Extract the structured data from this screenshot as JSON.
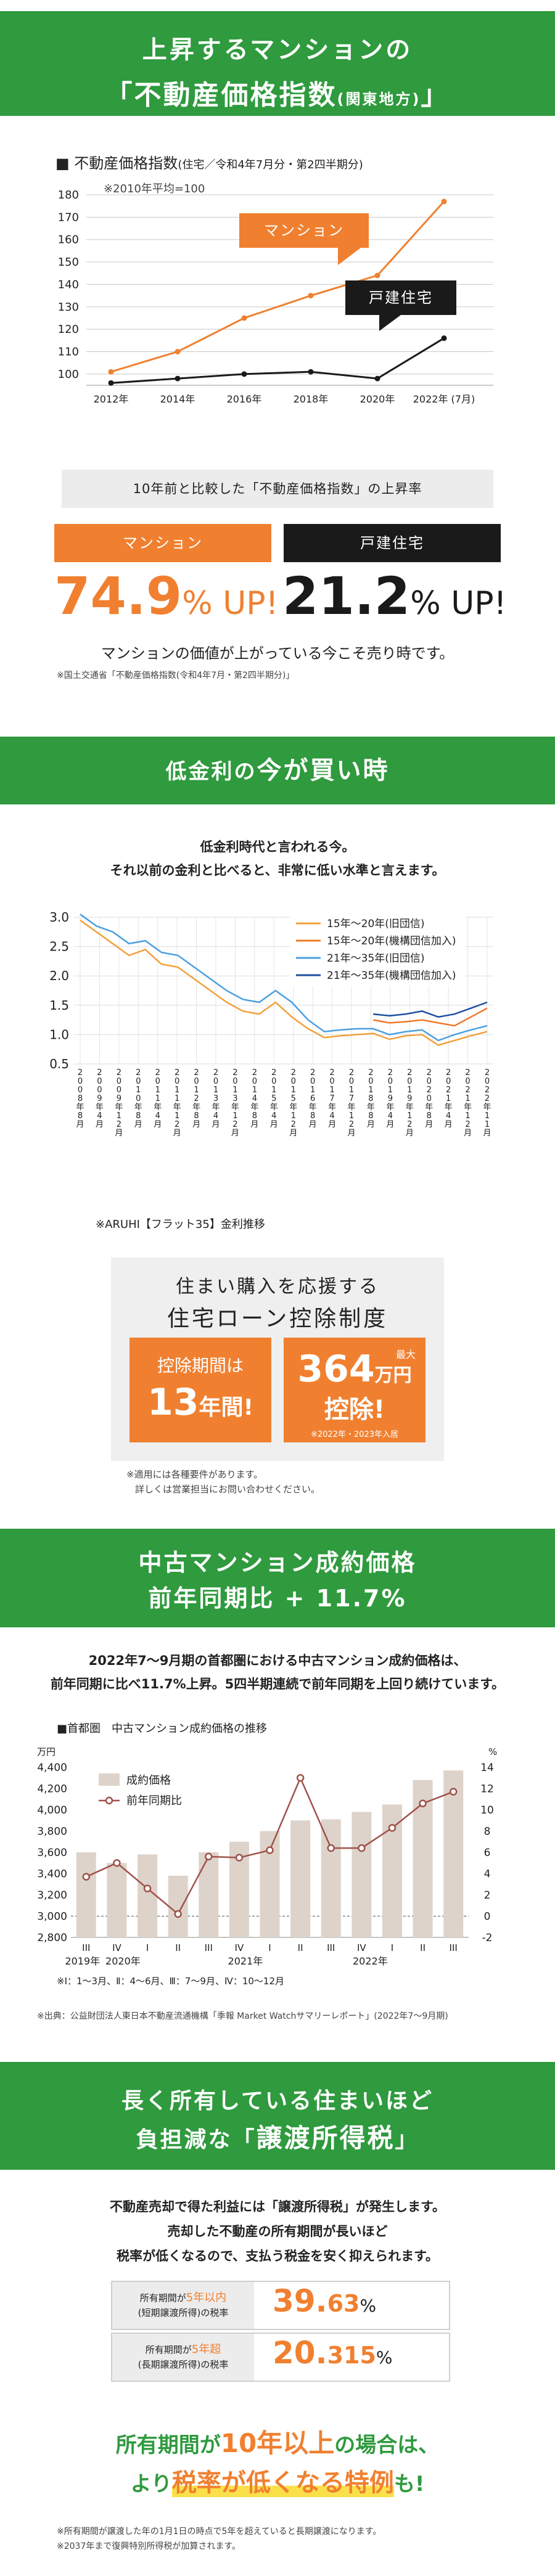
{
  "sec1": {
    "title_line1": "上昇するマンションの",
    "title_line2_main": "「不動産価格指数",
    "title_line2_sub": "(関東地方)",
    "title_line2_end": "」",
    "chart_title": "■ 不動産価格指数",
    "chart_title_sub": "(住宅／令和4年7月分・第2四半期分)",
    "chart_note": "※2010年平均=100",
    "compare_heading": "10年前と比較した「不動産価格指数」の上昇率",
    "mansion_label": "マンション",
    "house_label": "戸建住宅",
    "mansion_rate": "74.9",
    "house_rate": "21.2",
    "rate_suffix": "% UP!",
    "caption": "マンションの価値が上がっている今こそ売り時です。",
    "source": "※国土交通省「不動産価格指数(令和4年7月・第2四半期分)」"
  },
  "sec2": {
    "title_a": "低金利の",
    "title_b": "今が買い時",
    "lead1": "低金利時代と言われる今。",
    "lead2": "それ以前の金利と比べると、非常に低い水準と言えます。",
    "chart_caption": "※ARUHI【フラット35】金利推移",
    "box_line1": "住まい購入を応援する",
    "box_line2": "住宅ローン控除制度",
    "period_label": "控除期間は",
    "period_value": "13",
    "period_unit": "年間!",
    "max_label": "最大",
    "amount_value": "364",
    "amount_unit": "万円",
    "amount_tail": "控除!",
    "amount_note": "※2022年・2023年入居",
    "note1": "※適用には各種要件があります。",
    "note2": "詳しくは営業担当にお問い合わせください。"
  },
  "sec3": {
    "title1": "中古マンション成約価格",
    "title2": "前年同期比 + 11.7%",
    "lead1": "2022年7〜9月期の首都圏における中古マンション成約価格は、",
    "lead2": "前年同期に比べ11.7%上昇。5四半期連続で前年同期を上回り続けています。",
    "chart_heading": "■首都圏　中古マンション成約価格の推移",
    "left_unit": "万円",
    "right_unit": "%",
    "legend_bar": "成約価格",
    "legend_line": "前年同期比",
    "quarter_note": "※Ⅰ：1〜3月、Ⅱ：4〜6月、Ⅲ：7〜9月、Ⅳ：10〜12月",
    "source": "※出典：公益財団法人東日本不動産流通機構「季報 Market Watchサマリーレポート」(2022年7〜9月期)"
  },
  "sec4": {
    "title1": "長く所有している住まいほど",
    "title2a": "負担減な「",
    "title2b": "譲渡所得税",
    "title2c": "」",
    "p1": "不動産売却で得た利益には「譲渡所得税」が発生します。",
    "p2": "売却した不動産の所有期間が長いほど",
    "p3": "税率が低くなるので、支払う税金を安く抑えられます。",
    "row1_a": "所有期間が",
    "row1_b": "5年以内",
    "row1_c": "(短期譲渡所得)の税率",
    "row1_int": "39.",
    "row1_dec": "63",
    "row2_a": "所有期間が",
    "row2_b": "5年超",
    "row2_c": "(長期譲渡所得)の税率",
    "row2_int": "20.",
    "row2_dec": "315",
    "pct": "%",
    "big1a": "所有期間が",
    "big1b": "10年以上",
    "big1c": "の場合は、",
    "big2a": "より",
    "big2b": "税率が低くなる特例",
    "big2c": "も!",
    "fn1": "※所有期間が譲渡した年の1月1日の時点で5年を超えていると長期譲渡になります。",
    "fn2": "※2037年まで復興特別所得税が加算されます。"
  },
  "colors": {
    "green": "#2f9a3e",
    "orange": "#f08030",
    "black": "#1a1a1a",
    "bar": "#ddd3ca",
    "line": "#a0524a"
  },
  "chart_data": [
    {
      "type": "line",
      "title": "不動産価格指数",
      "categories": [
        "2012年",
        "2014年",
        "2016年",
        "2018年",
        "2020年",
        "2022年(7月)"
      ],
      "x_tick_labels": [
        "2012年",
        "2014年",
        "2016年",
        "2018年",
        "2020年",
        "2022年 (7月)"
      ],
      "ylim": [
        95,
        180
      ],
      "yticks": [
        100,
        110,
        120,
        130,
        140,
        150,
        160,
        170,
        180
      ],
      "series": [
        {
          "name": "マンション",
          "values": [
            101,
            110,
            125,
            135,
            144,
            177
          ]
        },
        {
          "name": "戸建住宅",
          "values": [
            96,
            98,
            100,
            101,
            98,
            116
          ]
        }
      ]
    },
    {
      "type": "line",
      "title": "ARUHI【フラット35】金利推移",
      "ylim": [
        0.5,
        3.0
      ],
      "yticks": [
        0.5,
        1.0,
        1.5,
        2.0,
        2.5,
        3.0
      ],
      "x_labels": [
        "2008年8月",
        "2009年4月",
        "2009年12月",
        "2010年8月",
        "2011年4月",
        "2011年12月",
        "2012年8月",
        "2013年4月",
        "2013年12月",
        "2014年8月",
        "2015年4月",
        "2015年12月",
        "2016年8月",
        "2017年4月",
        "2017年12月",
        "2018年8月",
        "2019年4月",
        "2019年12月",
        "2020年8月",
        "2021年4月",
        "2021年12月",
        "2022年11月"
      ],
      "series": [
        {
          "name": "15年〜20年(旧団信)",
          "values": [
            2.95,
            2.75,
            2.55,
            2.35,
            2.45,
            2.2,
            2.15,
            1.95,
            1.75,
            1.55,
            1.4,
            1.35,
            1.55,
            1.3,
            1.1,
            0.95,
            0.98,
            1.0,
            1.02,
            0.92,
            0.98,
            1.0,
            0.82,
            0.9,
            0.98,
            1.05
          ]
        },
        {
          "name": "15年〜20年(機構団信加入)",
          "values": [
            null,
            null,
            null,
            null,
            null,
            null,
            null,
            null,
            null,
            null,
            null,
            null,
            null,
            null,
            null,
            null,
            null,
            null,
            1.25,
            1.2,
            1.22,
            1.25,
            1.2,
            1.15,
            1.3,
            1.45
          ]
        },
        {
          "name": "21年〜35年(旧団信)",
          "values": [
            3.05,
            2.85,
            2.75,
            2.55,
            2.6,
            2.4,
            2.35,
            2.15,
            1.95,
            1.75,
            1.6,
            1.55,
            1.75,
            1.55,
            1.25,
            1.05,
            1.08,
            1.1,
            1.1,
            1.0,
            1.05,
            1.08,
            0.9,
            1.0,
            1.08,
            1.15
          ]
        },
        {
          "name": "21年〜35年(機構団信加入)",
          "values": [
            null,
            null,
            null,
            null,
            null,
            null,
            null,
            null,
            null,
            null,
            null,
            null,
            null,
            null,
            null,
            null,
            null,
            null,
            1.35,
            1.32,
            1.35,
            1.4,
            1.3,
            1.35,
            1.45,
            1.55
          ]
        }
      ]
    },
    {
      "type": "bar",
      "title": "首都圏 中古マンション成約価格の推移",
      "categories": [
        "III",
        "IV",
        "I",
        "II",
        "III",
        "IV",
        "I",
        "II",
        "III",
        "IV",
        "I",
        "II",
        "III"
      ],
      "year_labels": [
        "2019年",
        "2020年",
        "2021年",
        "2022年"
      ],
      "ylim_left": [
        2800,
        4400
      ],
      "yticks_left": [
        2800,
        3000,
        3200,
        3400,
        3600,
        3800,
        4000,
        4200,
        4400
      ],
      "ylim_right": [
        -2,
        14
      ],
      "yticks_right": [
        -2,
        0,
        2,
        4,
        6,
        8,
        10,
        12,
        14
      ],
      "series": [
        {
          "name": "成約価格",
          "values": [
            3600,
            3500,
            3580,
            3380,
            3600,
            3700,
            3800,
            3900,
            3910,
            3980,
            4050,
            4280,
            4370
          ]
        },
        {
          "name": "前年同期比",
          "values": [
            3.7,
            5.0,
            2.6,
            0.2,
            5.6,
            5.5,
            6.2,
            13.0,
            6.4,
            6.4,
            8.3,
            10.6,
            11.7
          ]
        }
      ]
    }
  ]
}
